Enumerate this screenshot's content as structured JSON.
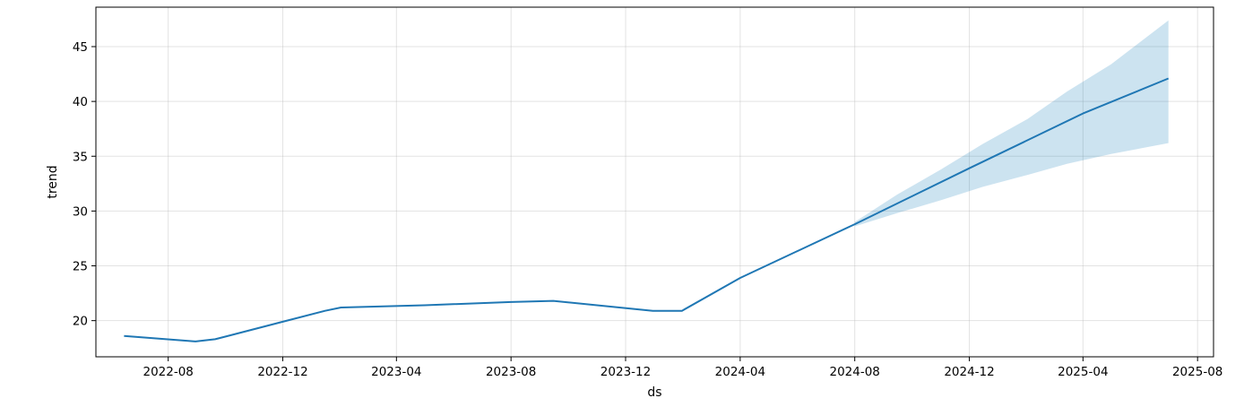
{
  "chart_data": {
    "type": "line",
    "xlabel": "ds",
    "ylabel": "trend",
    "x_ticks": [
      "2022-08",
      "2022-12",
      "2023-04",
      "2023-08",
      "2023-12",
      "2024-04",
      "2024-08",
      "2024-12",
      "2025-04",
      "2025-08"
    ],
    "y_ticks": [
      20,
      25,
      30,
      35,
      40,
      45
    ],
    "xlim": [
      "2022-05-16",
      "2025-08-18"
    ],
    "ylim": [
      16.7,
      48.6
    ],
    "grid": true,
    "colors": {
      "line": "#1f77b4",
      "band": "#0072b2"
    },
    "series": [
      {
        "x": [
          "2022-06-15",
          "2022-08-30",
          "2022-09-20",
          "2022-12-01",
          "2023-01-15",
          "2023-02-01",
          "2023-05-01",
          "2023-08-01",
          "2023-09-15",
          "2023-12-30",
          "2024-01-30",
          "2024-04-01",
          "2024-08-01",
          "2024-12-01",
          "2025-04-01",
          "2025-07-01"
        ],
        "y": [
          18.6,
          18.1,
          18.3,
          19.9,
          20.9,
          21.2,
          21.4,
          21.7,
          21.8,
          20.9,
          20.9,
          23.9,
          28.8,
          33.9,
          38.9,
          42.1
        ]
      }
    ],
    "uncertainty": {
      "x": [
        "2024-08-01",
        "2024-09-15",
        "2024-11-01",
        "2024-12-15",
        "2025-02-01",
        "2025-03-15",
        "2025-05-01",
        "2025-07-01"
      ],
      "lower": [
        28.6,
        29.8,
        31.0,
        32.2,
        33.3,
        34.3,
        35.2,
        36.2
      ],
      "upper": [
        29.0,
        31.5,
        33.8,
        36.1,
        38.4,
        40.9,
        43.4,
        47.4
      ]
    }
  }
}
